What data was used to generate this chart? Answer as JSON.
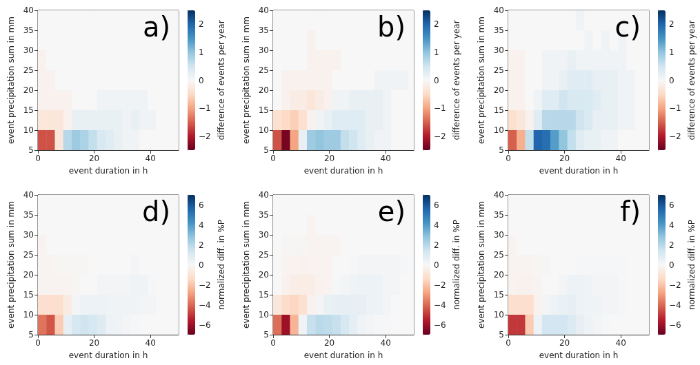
{
  "chart_data": [
    {
      "type": "heatmap",
      "annotations": [
        "a)"
      ],
      "xlabel": "event duration in h",
      "ylabel": "event precipitation sum in mm",
      "clabel": "difference of events per year",
      "x": [
        1.5,
        4.5,
        7.5,
        10.5,
        13.5,
        16.5,
        19.5,
        22.5,
        25.5,
        28.5,
        31.5,
        34.5,
        37.5,
        40.5,
        43.5,
        46.5,
        49.5
      ],
      "xlim": [
        0,
        50
      ],
      "xticks": [
        0,
        20,
        40
      ],
      "ylim": [
        5,
        40
      ],
      "yticks": [
        5,
        10,
        15,
        20,
        25,
        30,
        35,
        40
      ],
      "clim": [
        -2.5,
        2.5
      ],
      "cticks": [
        -2,
        -1,
        0,
        1,
        2
      ],
      "cells": [
        [
          0,
          0,
          0,
          0,
          0,
          0,
          0,
          0,
          0,
          0,
          0,
          0,
          0,
          0,
          0,
          0,
          0
        ],
        [
          0,
          0,
          0,
          0,
          0,
          0,
          0,
          0,
          0,
          0,
          0,
          0,
          0,
          0,
          0,
          0,
          0
        ],
        [
          -0.1,
          0,
          0,
          0,
          0,
          0,
          0,
          0,
          0,
          0,
          0,
          0,
          0,
          0,
          0,
          0,
          0
        ],
        [
          -0.1,
          -0.1,
          0,
          0,
          0,
          0,
          0,
          0,
          0,
          0,
          0,
          0,
          0,
          0,
          0,
          0,
          0
        ],
        [
          -0.1,
          -0.1,
          -0.1,
          -0.1,
          0,
          0,
          0,
          0.1,
          0.1,
          0.1,
          0.1,
          0.1,
          0.1,
          0,
          0,
          0,
          0
        ],
        [
          -0.3,
          -0.3,
          -0.3,
          -0.1,
          0.2,
          0.2,
          0.2,
          0.2,
          0.2,
          0.2,
          0.1,
          0.2,
          0.1,
          0.1,
          0,
          0,
          0
        ],
        [
          -1.6,
          -1.6,
          -0.3,
          0.7,
          0.9,
          0.8,
          0.6,
          0.4,
          0.3,
          0.2,
          0.1,
          0.1,
          0,
          0,
          0,
          0,
          0
        ]
      ]
    },
    {
      "type": "heatmap",
      "annotations": [
        "b)"
      ],
      "xlabel": "event duration in h",
      "ylabel": "event precipitation sum in mm",
      "clabel": "difference of events per year",
      "x": [
        1.5,
        4.5,
        7.5,
        10.5,
        13.5,
        16.5,
        19.5,
        22.5,
        25.5,
        28.5,
        31.5,
        34.5,
        37.5,
        40.5,
        43.5,
        46.5,
        49.5
      ],
      "xlim": [
        0,
        50
      ],
      "xticks": [
        0,
        20,
        40
      ],
      "ylim": [
        5,
        40
      ],
      "yticks": [
        5,
        10,
        15,
        20,
        25,
        30,
        35,
        40
      ],
      "clim": [
        -2.5,
        2.5
      ],
      "cticks": [
        -2,
        -1,
        0,
        1,
        2
      ],
      "cells": [
        [
          0,
          0,
          0,
          0,
          0,
          0,
          0,
          0,
          0,
          0,
          0,
          0,
          0,
          0,
          0,
          0,
          0
        ],
        [
          0,
          0,
          0,
          0,
          -0.1,
          0,
          0,
          0,
          0,
          0,
          0,
          0,
          0,
          0,
          0,
          0,
          0
        ],
        [
          0,
          0,
          0,
          0,
          -0.1,
          -0.1,
          -0.1,
          -0.1,
          0,
          0,
          0,
          0,
          0,
          0,
          0,
          0,
          0
        ],
        [
          0,
          -0.1,
          -0.1,
          -0.1,
          -0.1,
          -0.1,
          -0.1,
          0,
          0,
          0,
          0,
          0,
          0.1,
          0.1,
          0.1,
          0.1,
          0
        ],
        [
          0,
          -0.1,
          -0.2,
          -0.2,
          -0.3,
          -0.2,
          -0.1,
          0.1,
          0.1,
          0.2,
          0.2,
          0.2,
          0.2,
          0.1,
          0,
          0,
          0
        ],
        [
          -0.4,
          -0.5,
          -0.6,
          -0.4,
          -0.1,
          0.1,
          0.2,
          0.3,
          0.3,
          0.3,
          0.3,
          0.2,
          0.2,
          0.1,
          0,
          0,
          0
        ],
        [
          -1.6,
          -2.4,
          -1.0,
          0.2,
          0.9,
          1.0,
          0.9,
          0.9,
          0.6,
          0.5,
          0.3,
          0.2,
          0.1,
          0.1,
          0,
          0,
          0
        ]
      ]
    },
    {
      "type": "heatmap",
      "annotations": [
        "c)"
      ],
      "xlabel": "event duration in h",
      "ylabel": "event precipitation sum in mm",
      "clabel": "difference of events per year",
      "x": [
        1.5,
        4.5,
        7.5,
        10.5,
        13.5,
        16.5,
        19.5,
        22.5,
        25.5,
        28.5,
        31.5,
        34.5,
        37.5,
        40.5,
        43.5,
        46.5,
        49.5
      ],
      "xlim": [
        0,
        50
      ],
      "xticks": [
        0,
        20,
        40
      ],
      "ylim": [
        5,
        40
      ],
      "yticks": [
        5,
        10,
        15,
        20,
        25,
        30,
        35,
        40
      ],
      "clim": [
        -2.5,
        2.5
      ],
      "cticks": [
        -2,
        -1,
        0,
        1,
        2
      ],
      "cells": [
        [
          0,
          0,
          0,
          0,
          0,
          0,
          0,
          0,
          0.1,
          0,
          0,
          0,
          0,
          0,
          0,
          0,
          0
        ],
        [
          0,
          0,
          0,
          0,
          0,
          0,
          0,
          0,
          0,
          0.1,
          0,
          0.1,
          0,
          0.1,
          0,
          0,
          0
        ],
        [
          -0.1,
          -0.1,
          0,
          0,
          0.1,
          0.1,
          0.1,
          0.2,
          0.1,
          0.1,
          0.1,
          0.1,
          0.1,
          0.1,
          0,
          0,
          0
        ],
        [
          -0.1,
          -0.1,
          0,
          0,
          0.1,
          0.1,
          0.2,
          0.3,
          0.3,
          0.3,
          0.2,
          0.2,
          0.2,
          0.1,
          0.1,
          0,
          0
        ],
        [
          -0.1,
          -0.1,
          0,
          0.1,
          0.3,
          0.3,
          0.5,
          0.4,
          0.4,
          0.4,
          0.3,
          0.2,
          0.2,
          0.1,
          0.1,
          0,
          0
        ],
        [
          -0.4,
          -0.3,
          -0.1,
          0.3,
          0.7,
          0.7,
          0.7,
          0.7,
          0.5,
          0.4,
          0.2,
          0.2,
          0.2,
          0.1,
          0.1,
          0,
          0
        ],
        [
          -1.5,
          -0.9,
          0.6,
          2.0,
          1.9,
          1.4,
          1.0,
          0.6,
          0.3,
          0.2,
          0.2,
          0.1,
          0.1,
          0,
          0,
          0,
          0
        ]
      ]
    },
    {
      "type": "heatmap",
      "annotations": [
        "d)"
      ],
      "xlabel": "event duration in h",
      "ylabel": "event precipitation sum in mm",
      "clabel": "normalized diff. in %P",
      "x": [
        1.5,
        4.5,
        7.5,
        10.5,
        13.5,
        16.5,
        19.5,
        22.5,
        25.5,
        28.5,
        31.5,
        34.5,
        37.5,
        40.5,
        43.5,
        46.5,
        49.5
      ],
      "xlim": [
        0,
        50
      ],
      "xticks": [
        0,
        20,
        40
      ],
      "ylim": [
        5,
        40
      ],
      "yticks": [
        5,
        10,
        15,
        20,
        25,
        30,
        35,
        40
      ],
      "clim": [
        -7,
        7
      ],
      "cticks": [
        -6,
        -4,
        -2,
        0,
        2,
        4,
        6
      ],
      "cells": [
        [
          0,
          0,
          0,
          0,
          0,
          0,
          0,
          0,
          0,
          0,
          0,
          0,
          0,
          0,
          0,
          0,
          0
        ],
        [
          0,
          0,
          0,
          0,
          0,
          0,
          0,
          0,
          0,
          0,
          0,
          0,
          0,
          0,
          0,
          0,
          0
        ],
        [
          -0.2,
          0,
          0,
          0,
          0,
          0,
          0,
          0,
          0,
          0,
          0,
          0,
          0,
          0,
          0,
          0,
          0
        ],
        [
          -0.2,
          -0.2,
          -0.1,
          -0.1,
          -0.1,
          -0.1,
          0,
          0,
          0,
          0,
          0,
          0.2,
          0,
          0,
          0,
          0,
          0
        ],
        [
          -0.2,
          -0.2,
          -0.2,
          -0.2,
          -0.1,
          0,
          0,
          0.2,
          0.2,
          0.2,
          0.2,
          0.3,
          0.3,
          0.1,
          0,
          0,
          0
        ],
        [
          -1.2,
          -1.2,
          -1.2,
          -0.6,
          0.2,
          0.4,
          0.4,
          0.4,
          0.3,
          0.3,
          0.3,
          0.3,
          0.2,
          0.2,
          0,
          0,
          0
        ],
        [
          -3.8,
          -4.4,
          -1.8,
          0.6,
          1.2,
          1.4,
          1.2,
          0.9,
          0.4,
          0.3,
          0.2,
          0.1,
          0,
          0,
          0,
          0,
          0
        ]
      ]
    },
    {
      "type": "heatmap",
      "annotations": [
        "e)"
      ],
      "xlabel": "event duration in h",
      "ylabel": "event precipitation sum in mm",
      "clabel": "normalized diff. in %P",
      "x": [
        1.5,
        4.5,
        7.5,
        10.5,
        13.5,
        16.5,
        19.5,
        22.5,
        25.5,
        28.5,
        31.5,
        34.5,
        37.5,
        40.5,
        43.5,
        46.5,
        49.5
      ],
      "xlim": [
        0,
        50
      ],
      "xticks": [
        0,
        20,
        40
      ],
      "ylim": [
        5,
        40
      ],
      "yticks": [
        5,
        10,
        15,
        20,
        25,
        30,
        35,
        40
      ],
      "clim": [
        -7,
        7
      ],
      "cticks": [
        -6,
        -4,
        -2,
        0,
        2,
        4,
        6
      ],
      "cells": [
        [
          0,
          0,
          0,
          0,
          0,
          0,
          0,
          0,
          0,
          0,
          0,
          0,
          0,
          0,
          0,
          0,
          0
        ],
        [
          0,
          0,
          0,
          0,
          -0.2,
          0,
          0,
          0,
          0,
          0,
          0,
          0,
          0,
          0,
          0,
          0,
          0
        ],
        [
          0,
          -0.1,
          -0.1,
          -0.1,
          -0.2,
          -0.2,
          -0.2,
          -0.2,
          0,
          0,
          0,
          0,
          0,
          0,
          0,
          0,
          0
        ],
        [
          0,
          -0.2,
          -0.2,
          -0.3,
          -0.2,
          -0.2,
          -0.2,
          0,
          0,
          0.1,
          0.2,
          0.2,
          0.2,
          0.2,
          0.2,
          0.1,
          0
        ],
        [
          0,
          -0.3,
          -0.5,
          -0.5,
          -0.5,
          -0.3,
          -0.2,
          0.1,
          0.2,
          0.3,
          0.4,
          0.4,
          0.4,
          0.2,
          0.2,
          0,
          0
        ],
        [
          -0.8,
          -1.3,
          -1.5,
          -1.1,
          -0.3,
          0.2,
          0.5,
          0.6,
          0.6,
          0.6,
          0.6,
          0.4,
          0.4,
          0.2,
          0,
          0,
          0
        ],
        [
          -3.9,
          -6.0,
          -2.4,
          0.3,
          1.6,
          1.9,
          1.8,
          1.6,
          1.2,
          0.7,
          0.3,
          0.2,
          0.1,
          0.1,
          0,
          0,
          0
        ]
      ]
    },
    {
      "type": "heatmap",
      "annotations": [
        "f)"
      ],
      "xlabel": "event duration in h",
      "ylabel": "event precipitation sum in mm",
      "clabel": "normalized diff. in %P",
      "x": [
        1.5,
        4.5,
        7.5,
        10.5,
        13.5,
        16.5,
        19.5,
        22.5,
        25.5,
        28.5,
        31.5,
        34.5,
        37.5,
        40.5,
        43.5,
        46.5,
        49.5
      ],
      "xlim": [
        0,
        50
      ],
      "xticks": [
        0,
        20,
        40
      ],
      "ylim": [
        5,
        40
      ],
      "yticks": [
        5,
        10,
        15,
        20,
        25,
        30,
        35,
        40
      ],
      "clim": [
        -7,
        7
      ],
      "cticks": [
        -6,
        -4,
        -2,
        0,
        2,
        4,
        6
      ],
      "cells": [
        [
          0,
          0,
          0,
          0,
          0,
          0,
          0,
          0,
          0,
          0,
          0,
          0,
          0,
          0,
          0,
          0,
          0
        ],
        [
          0,
          0,
          0,
          0,
          0,
          0,
          0,
          0,
          0,
          0,
          0,
          0,
          0,
          0,
          0,
          0,
          0
        ],
        [
          -0.2,
          0,
          0,
          0,
          0,
          0,
          0,
          0,
          0,
          0,
          0,
          0,
          0,
          0,
          0,
          0,
          0
        ],
        [
          -0.2,
          -0.2,
          -0.2,
          -0.1,
          -0.1,
          0,
          0,
          0,
          0.1,
          0.1,
          0.1,
          0.1,
          0.1,
          0.1,
          0,
          0,
          0
        ],
        [
          -0.2,
          -0.3,
          -0.3,
          -0.2,
          0,
          0,
          0.2,
          0.4,
          0.4,
          0.3,
          0.2,
          0.2,
          0.2,
          0.1,
          0,
          0,
          0
        ],
        [
          -1.2,
          -1.2,
          -1.2,
          -0.3,
          0.2,
          0.4,
          0.5,
          0.6,
          0.4,
          0.3,
          0.3,
          0.2,
          0.2,
          0.1,
          0,
          0,
          0
        ],
        [
          -5.0,
          -5.0,
          -1.8,
          0.4,
          1.3,
          1.3,
          1.3,
          1.0,
          0.6,
          0.4,
          0.2,
          0.1,
          0,
          0,
          0,
          0,
          0
        ]
      ]
    }
  ]
}
